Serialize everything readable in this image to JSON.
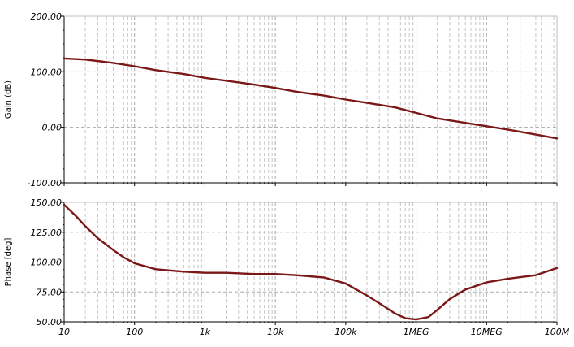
{
  "chart_data": [
    {
      "type": "line",
      "title": "",
      "xlabel": "",
      "ylabel": "Gain (dB)",
      "xscale": "log",
      "xlim": [
        10,
        100000000
      ],
      "ylim": [
        -100,
        200
      ],
      "yticks": [
        "200.00",
        "100.00",
        "0.00",
        "-100.00"
      ],
      "grid": true,
      "series": [
        {
          "color": "#7b1717",
          "x": [
            10,
            20,
            50,
            100,
            200,
            500,
            1000,
            2000,
            5000,
            10000,
            20000,
            50000,
            100000,
            200000,
            500000,
            1000000,
            2000000,
            5000000,
            10000000,
            20000000,
            50000000,
            100000000
          ],
          "y": [
            124,
            122,
            116,
            110,
            103,
            96,
            89,
            84,
            77,
            71,
            64,
            57,
            50,
            44,
            36,
            26,
            16,
            8,
            2,
            -4,
            -13,
            -20
          ]
        }
      ]
    },
    {
      "type": "line",
      "title": "",
      "xlabel": "",
      "ylabel": "Phase [deg]",
      "xscale": "log",
      "xlim": [
        10,
        100000000
      ],
      "ylim": [
        50,
        150
      ],
      "xticks": [
        "10",
        "100",
        "1k",
        "10k",
        "100k",
        "1MEG",
        "10MEG",
        "100M"
      ],
      "yticks": [
        "150.00",
        "125.00",
        "100.00",
        "75.00",
        "50.00"
      ],
      "grid": true,
      "series": [
        {
          "color": "#7b1717",
          "x": [
            10,
            15,
            20,
            30,
            50,
            70,
            100,
            200,
            500,
            1000,
            2000,
            5000,
            10000,
            20000,
            50000,
            100000,
            200000,
            350000,
            500000,
            700000,
            1000000,
            1500000,
            2000000,
            3000000,
            5000000,
            10000000,
            20000000,
            50000000,
            100000000
          ],
          "y": [
            148,
            138,
            130,
            120,
            110,
            104,
            99,
            94,
            92,
            91,
            91,
            90,
            90,
            89,
            87,
            82,
            72,
            63,
            57,
            53,
            52,
            54,
            60,
            69,
            77,
            83,
            86,
            89,
            95
          ]
        }
      ]
    }
  ]
}
